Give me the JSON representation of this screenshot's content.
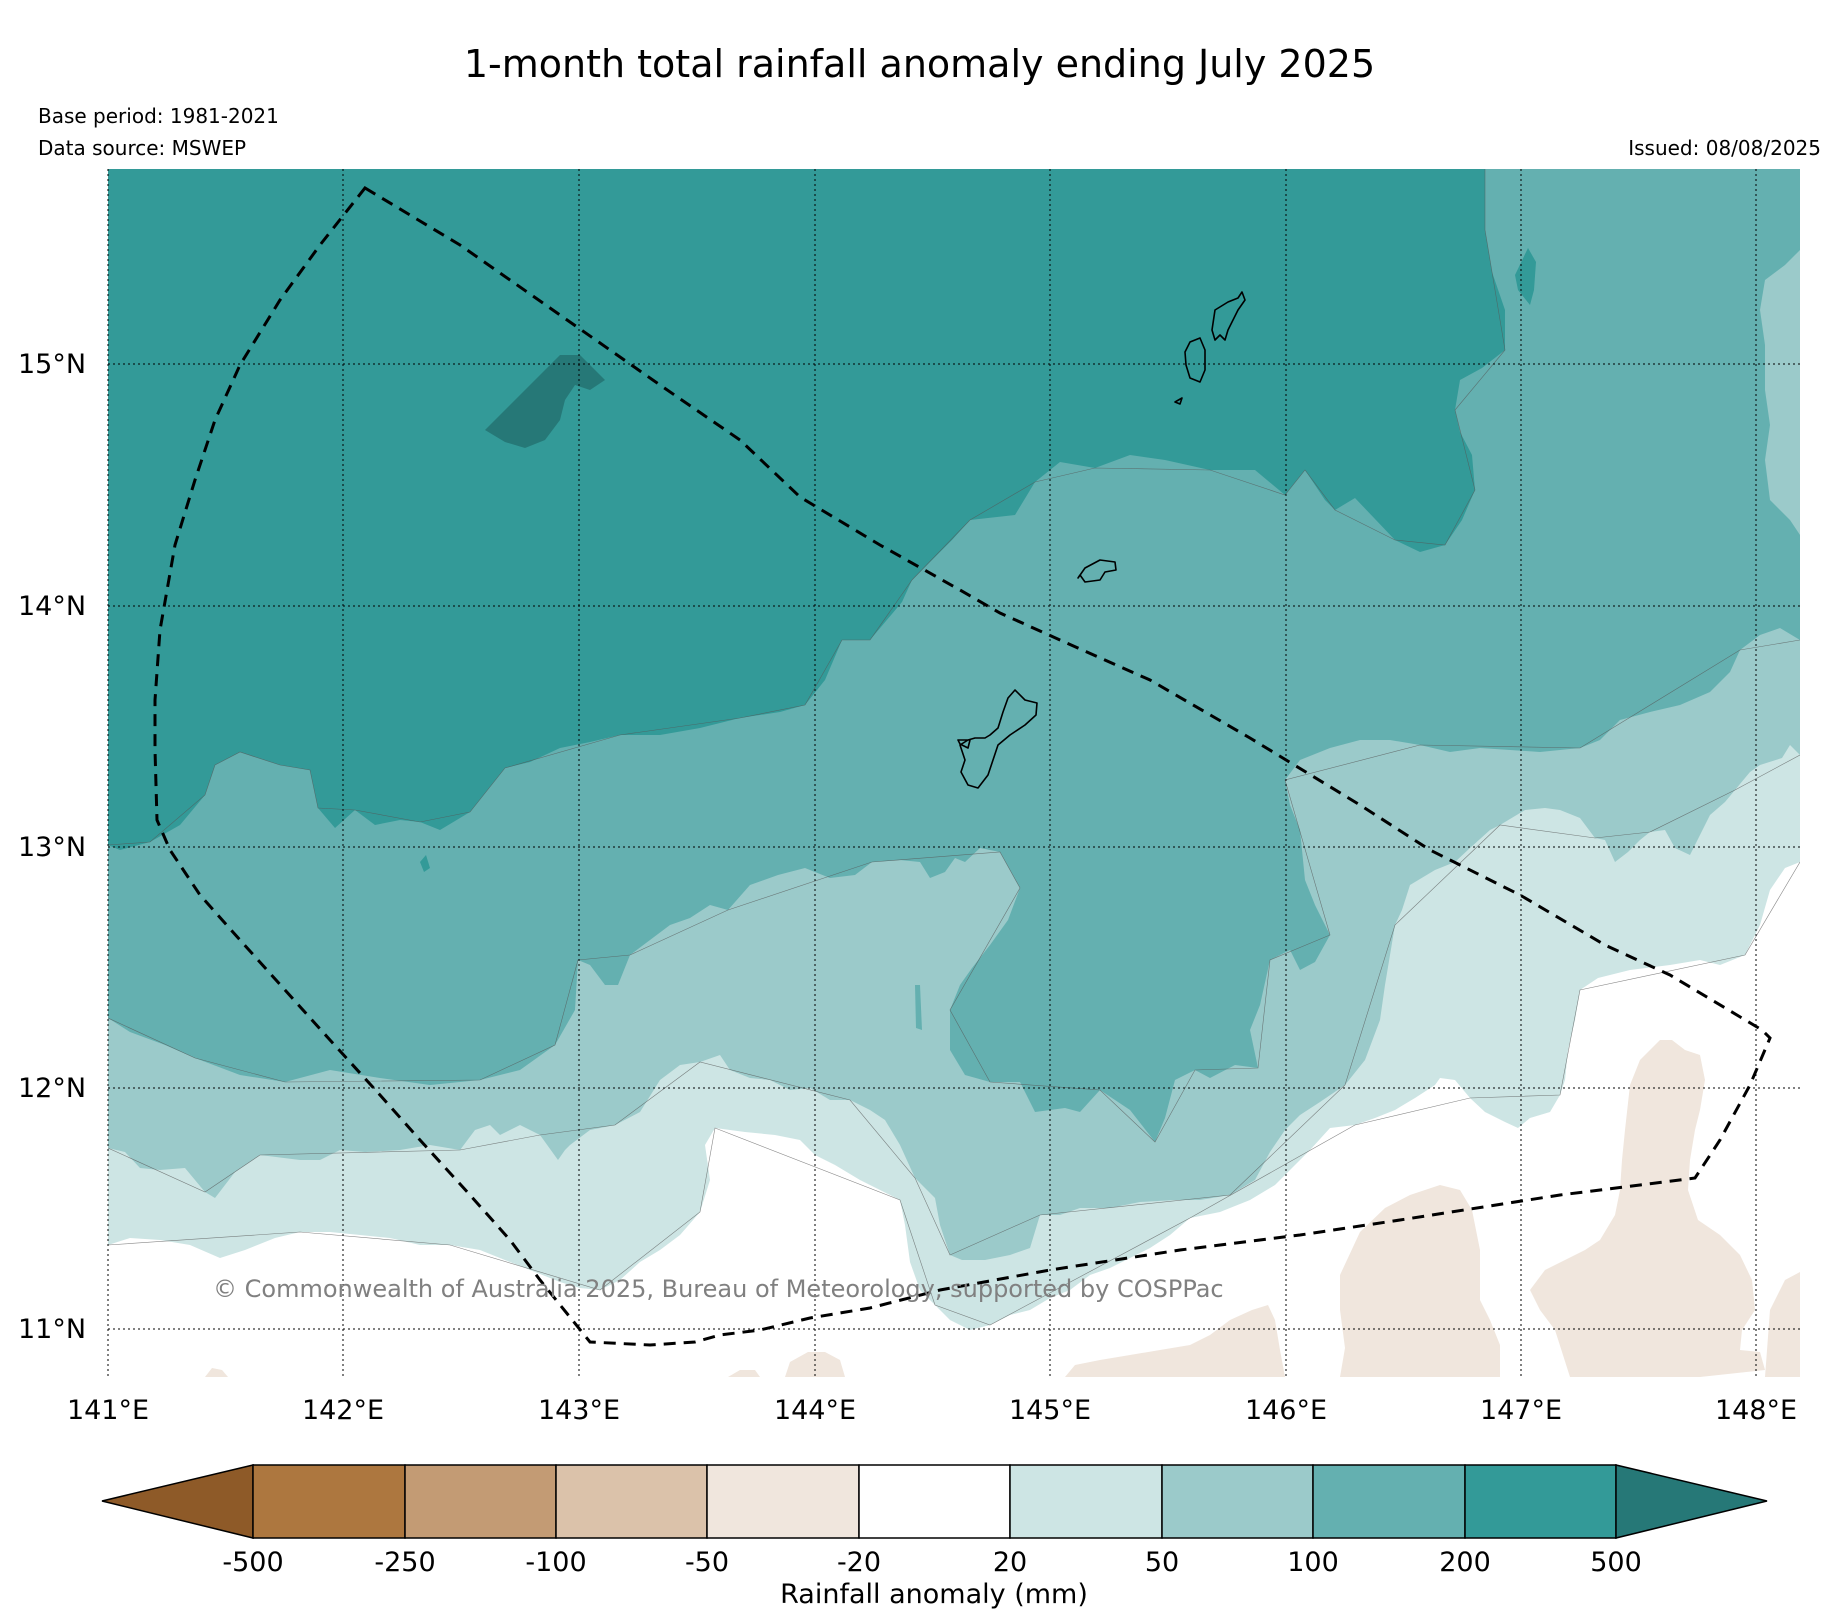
{
  "header": {
    "title": "1-month total rainfall anomaly ending July 2025",
    "base_period": "Base period: 1981-2021",
    "data_source": "Data source: MSWEP",
    "issued": "Issued: 08/08/2025"
  },
  "map": {
    "lon_ticks": [
      "141°E",
      "142°E",
      "143°E",
      "144°E",
      "145°E",
      "146°E",
      "147°E",
      "148°E"
    ],
    "lat_ticks": [
      "15°N",
      "14°N",
      "13°N",
      "12°N",
      "11°N"
    ],
    "lon_range": [
      141,
      148.2
    ],
    "lat_range": [
      10.8,
      15.8
    ],
    "copyright": "© Commonwealth of Australia 2025, Bureau of Meteorology, supported by COSPPac",
    "grid": true,
    "islands": [
      "Guam",
      "Rota",
      "Tinian",
      "Saipan"
    ]
  },
  "colorbar": {
    "label": "Rainfall anomaly (mm)",
    "tick_labels": [
      "-500",
      "-250",
      "-100",
      "-50",
      "-20",
      "20",
      "50",
      "100",
      "200",
      "500"
    ],
    "colors": [
      "#8e5a28",
      "#ad773f",
      "#c39b74",
      "#dbc2aa",
      "#f0e6dd",
      "#ffffff",
      "#cde5e4",
      "#9bcaca",
      "#64b0b0",
      "#339a98",
      "#267877"
    ]
  }
}
